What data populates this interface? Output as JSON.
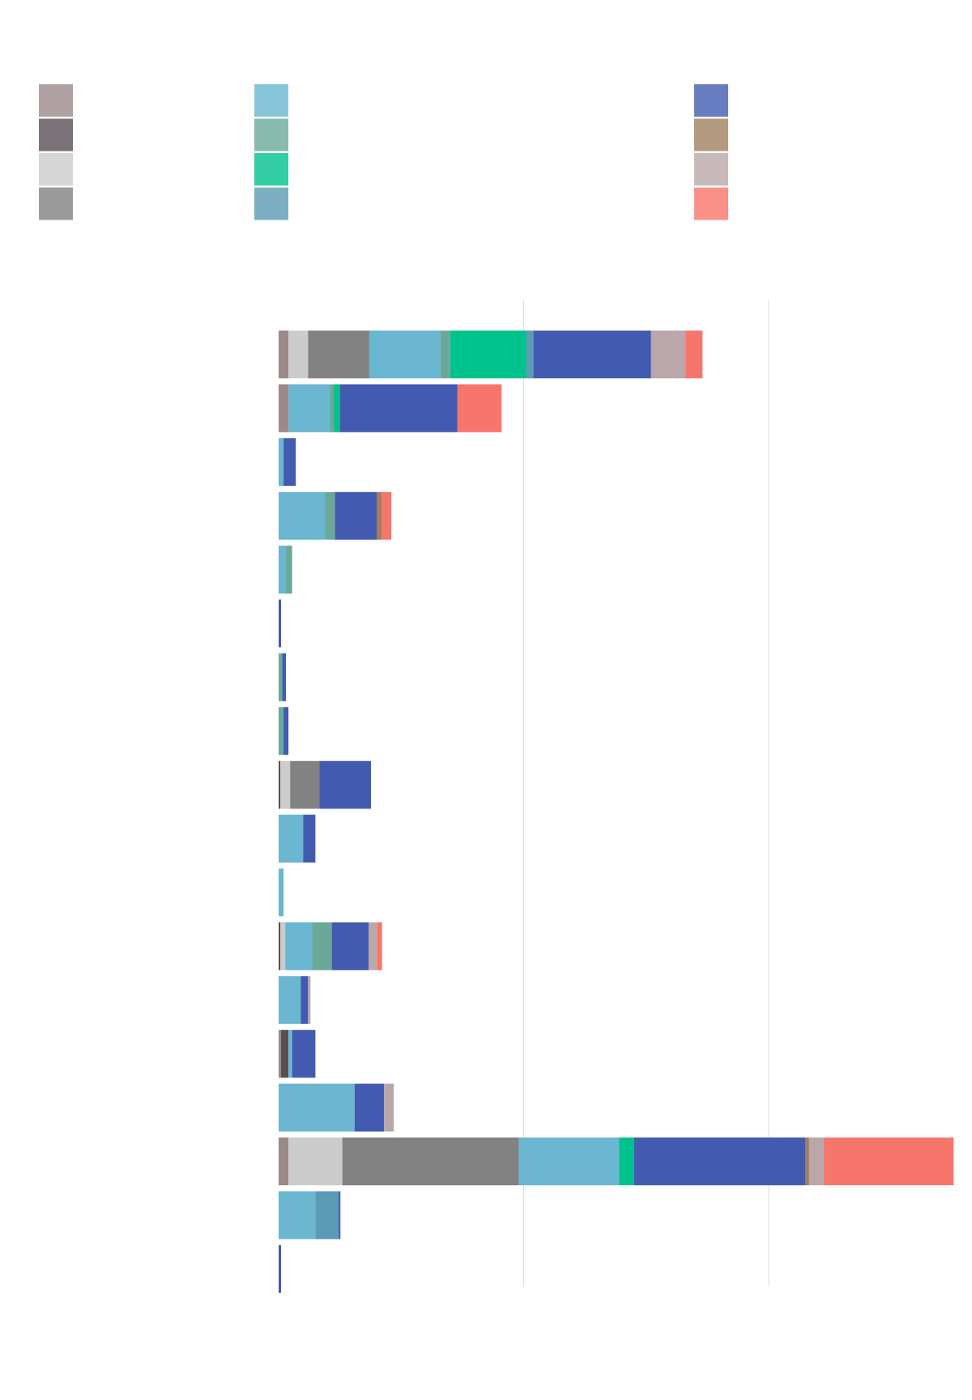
{
  "chart_data": {
    "type": "stacked-barh",
    "categories": [
      null,
      null,
      null,
      null,
      null,
      null,
      null,
      null,
      null,
      null,
      null,
      null,
      null,
      null,
      null,
      null,
      null,
      null
    ],
    "xlim": [
      0,
      280
    ],
    "xticks": [
      100,
      200
    ],
    "grid": true,
    "series": [
      {
        "color": "#9b8a8a",
        "values": [
          4,
          4,
          0,
          0,
          0,
          0,
          0,
          0,
          0,
          0,
          0,
          0,
          0,
          1,
          0,
          4,
          0,
          0
        ]
      },
      {
        "color": "#5a4e56",
        "values": [
          0,
          0,
          0,
          0,
          0,
          0,
          0,
          0,
          0.7,
          0,
          0,
          0.7,
          0,
          3,
          0,
          0,
          0,
          0
        ]
      },
      {
        "color": "#cccccc",
        "values": [
          8,
          0,
          0,
          0,
          0,
          0,
          0,
          0,
          4,
          0,
          0,
          2,
          0,
          0,
          0,
          22,
          0,
          0
        ]
      },
      {
        "color": "#828282",
        "values": [
          25,
          0,
          0,
          0,
          0,
          0,
          0,
          0,
          12,
          0,
          0,
          0,
          0,
          0,
          0,
          72,
          0,
          0
        ]
      },
      {
        "color": "#6bb6d0",
        "values": [
          29,
          17,
          2,
          19,
          3,
          0,
          0,
          0,
          0,
          10,
          2,
          11,
          9,
          1.5,
          31,
          41,
          15,
          0
        ]
      },
      {
        "color": "#6aa99a",
        "values": [
          4,
          1.5,
          0,
          4,
          2.5,
          0,
          1.5,
          2,
          0,
          0,
          0,
          8,
          0,
          0,
          0,
          0,
          0,
          0
        ]
      },
      {
        "color": "#00c28c",
        "values": [
          31,
          2.5,
          0,
          0,
          0,
          0,
          0,
          0,
          0,
          0,
          0,
          0,
          0,
          0,
          0,
          6,
          0,
          0
        ]
      },
      {
        "color": "#5b9bb5",
        "values": [
          3,
          0,
          0,
          0,
          0,
          0,
          0,
          0,
          0,
          0,
          0,
          0,
          0,
          0,
          0,
          0,
          9.5,
          0
        ]
      },
      {
        "color": "#425bb0",
        "values": [
          48,
          48,
          5,
          17,
          0,
          1,
          1.5,
          2,
          21,
          5,
          0,
          15,
          3,
          9.5,
          12,
          70,
          0.7,
          1
        ]
      },
      {
        "color": "#a08060",
        "values": [
          0,
          0,
          0,
          2,
          0,
          0,
          0,
          0,
          0,
          0,
          0,
          0,
          0,
          0,
          0,
          1.5,
          0,
          0
        ]
      },
      {
        "color": "#b9a7a9",
        "values": [
          14,
          0,
          0,
          0,
          0,
          0,
          0,
          0,
          0,
          0,
          0,
          3.5,
          1,
          0,
          4,
          6,
          0,
          0
        ]
      },
      {
        "color": "#f7766c",
        "values": [
          7,
          18,
          0,
          4,
          0,
          0,
          0,
          0,
          0,
          0,
          0,
          2,
          0,
          0,
          0,
          53,
          0,
          0
        ]
      }
    ]
  }
}
